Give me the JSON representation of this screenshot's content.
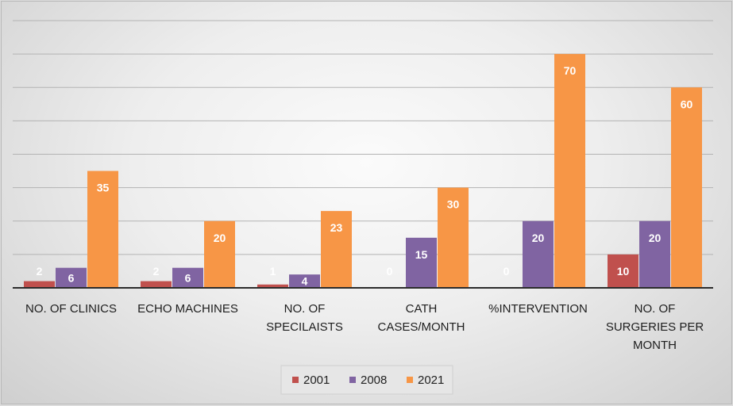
{
  "chart_data": {
    "type": "bar",
    "categories": [
      [
        "NO. OF CLINICS"
      ],
      [
        "ECHO MACHINES"
      ],
      [
        "NO. OF",
        "SPECILAISTS"
      ],
      [
        "CATH",
        "CASES/MONTH"
      ],
      [
        "%INTERVENTION"
      ],
      [
        "NO. OF",
        "SURGERIES PER",
        "MONTH"
      ]
    ],
    "series": [
      {
        "name": "2001",
        "color": "#c0504d",
        "values": [
          2,
          2,
          1,
          0,
          0,
          10
        ]
      },
      {
        "name": "2008",
        "color": "#8064a2",
        "values": [
          6,
          6,
          4,
          15,
          20,
          20
        ]
      },
      {
        "name": "2021",
        "color": "#f79646",
        "values": [
          35,
          20,
          23,
          30,
          70,
          60
        ]
      }
    ],
    "ylim": [
      0,
      80
    ],
    "grid": true,
    "legend_position": "bottom",
    "title": "",
    "xlabel": "",
    "ylabel": ""
  }
}
